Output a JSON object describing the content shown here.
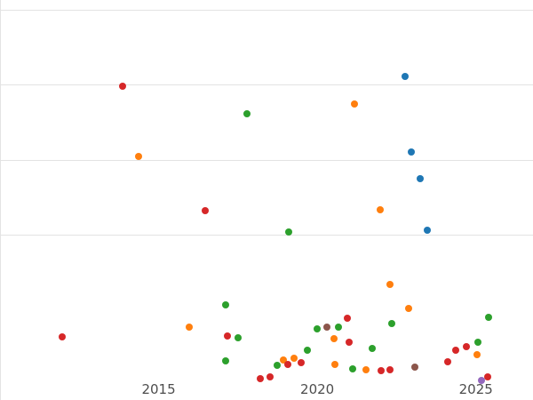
{
  "chart_data": {
    "type": "scatter",
    "title": "",
    "xlabel": "",
    "ylabel": "",
    "grid": true,
    "legend": "none",
    "xlim": [
      2010.0,
      2026.8
    ],
    "ylim": [
      -0.21,
      5.14
    ],
    "x_ticks": [
      2015,
      2020,
      2025
    ],
    "x_tick_labels": [
      "2015",
      "2020",
      "2025"
    ],
    "gridline_values": [
      2,
      3,
      4,
      5
    ],
    "left_axis_line": true,
    "series": [
      {
        "name": "series-blue",
        "color": "#1f77b4",
        "points": [
          [
            2022.76,
            4.12
          ],
          [
            2022.95,
            3.11
          ],
          [
            2023.23,
            2.75
          ],
          [
            2023.46,
            2.06
          ]
        ]
      },
      {
        "name": "series-orange",
        "color": "#ff7f0e",
        "points": [
          [
            2021.16,
            3.75
          ],
          [
            2014.36,
            3.05
          ],
          [
            2021.97,
            2.33
          ],
          [
            2022.28,
            1.33
          ],
          [
            2015.95,
            0.77
          ],
          [
            2018.92,
            0.33
          ],
          [
            2019.26,
            0.35
          ],
          [
            2020.53,
            0.61
          ],
          [
            2020.56,
            0.26
          ],
          [
            2021.54,
            0.2
          ],
          [
            2022.87,
            1.01
          ],
          [
            2025.03,
            0.4
          ]
        ]
      },
      {
        "name": "series-green",
        "color": "#2ca02c",
        "points": [
          [
            2017.77,
            3.62
          ],
          [
            2019.09,
            2.04
          ],
          [
            2017.1,
            1.06
          ],
          [
            2017.49,
            0.62
          ],
          [
            2017.1,
            0.31
          ],
          [
            2018.73,
            0.25
          ],
          [
            2019.68,
            0.46
          ],
          [
            2020.0,
            0.74
          ],
          [
            2020.67,
            0.77
          ],
          [
            2021.12,
            0.21
          ],
          [
            2021.74,
            0.48
          ],
          [
            2022.36,
            0.81
          ],
          [
            2025.06,
            0.56
          ],
          [
            2025.39,
            0.89
          ]
        ]
      },
      {
        "name": "series-red",
        "color": "#d62728",
        "points": [
          [
            2013.85,
            3.99
          ],
          [
            2016.48,
            2.32
          ],
          [
            2011.97,
            0.64
          ],
          [
            2017.18,
            0.65
          ],
          [
            2018.19,
            0.08
          ],
          [
            2018.5,
            0.1
          ],
          [
            2019.06,
            0.26
          ],
          [
            2019.48,
            0.29
          ],
          [
            2020.95,
            0.88
          ],
          [
            2021.01,
            0.56
          ],
          [
            2022.0,
            0.18
          ],
          [
            2022.28,
            0.19
          ],
          [
            2024.1,
            0.3
          ],
          [
            2024.36,
            0.46
          ],
          [
            2024.69,
            0.5
          ],
          [
            2025.36,
            0.1
          ]
        ]
      },
      {
        "name": "series-brown",
        "color": "#8c564b",
        "points": [
          [
            2020.31,
            0.77
          ],
          [
            2023.07,
            0.23
          ]
        ]
      },
      {
        "name": "series-purple",
        "color": "#9467bd",
        "points": [
          [
            2025.17,
            0.05
          ]
        ]
      }
    ]
  },
  "style_tokens": {
    "gridline_color": "#e3e3e3",
    "tick_label_color": "#4d4d4d",
    "background_color": "#ffffff"
  }
}
